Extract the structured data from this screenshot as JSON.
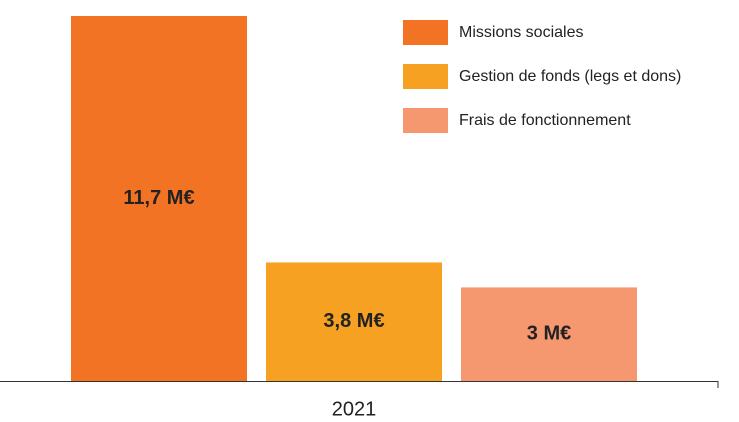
{
  "chart_data": {
    "type": "bar",
    "categories": [
      "2021"
    ],
    "series": [
      {
        "name": "Missions sociales",
        "color": "#f37325",
        "values": [
          11.7
        ],
        "value_labels": [
          "11,7 M€"
        ]
      },
      {
        "name": "Gestion de fonds (legs et dons)",
        "color": "#f7a122",
        "values": [
          3.8
        ],
        "value_labels": [
          "3,8 M€"
        ]
      },
      {
        "name": "Frais de fonctionnement",
        "color": "#f6986f",
        "values": [
          3
        ],
        "value_labels": [
          "3 M€"
        ]
      }
    ],
    "legend": "top-right"
  }
}
